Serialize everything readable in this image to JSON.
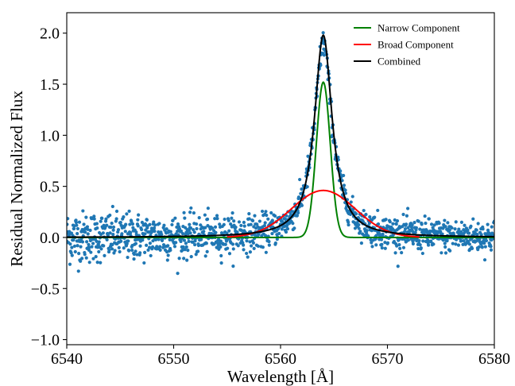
{
  "chart_data": {
    "type": "line",
    "title": "",
    "xlabel": "Wavelength [Å]",
    "ylabel": "Residual Normalized Flux",
    "xlim": [
      6540,
      6580
    ],
    "ylim": [
      -1.05,
      2.2
    ],
    "x_ticks": [
      6540,
      6550,
      6560,
      6570,
      6580
    ],
    "x_tick_labels": [
      "6540",
      "6550",
      "6560",
      "6570",
      "6580"
    ],
    "y_ticks": [
      -1.0,
      -0.5,
      0.0,
      0.5,
      1.0,
      1.5,
      2.0
    ],
    "y_tick_labels": [
      "−1.0",
      "−0.5",
      "0.0",
      "0.5",
      "1.0",
      "1.5",
      "2.0"
    ],
    "grid": false,
    "legend_position": "top-right",
    "series": [
      {
        "name": "Narrow Component",
        "color": "#008000",
        "model": {
          "shape": "gaussian",
          "center": 6564.0,
          "amplitude": 1.52,
          "sigma": 0.65
        }
      },
      {
        "name": "Broad Component",
        "color": "#ff0000",
        "model": {
          "shape": "gaussian",
          "center": 6564.0,
          "amplitude": 0.46,
          "sigma": 3.0,
          "wing_falloff": "linear-ish",
          "visible_range": [
            6555,
            6573
          ]
        }
      },
      {
        "name": "Combined",
        "color": "#000000",
        "model": {
          "shape": "lorentzian",
          "center": 6564.0,
          "amplitude": 1.98,
          "hwhm": 1.0
        }
      }
    ],
    "scatter": {
      "color": "#1f77b4",
      "description_points_x_range": [
        6540,
        6580
      ],
      "noise_level_left": 0.13,
      "noise_level_right": 0.08,
      "peak_value": 1.9
    }
  }
}
